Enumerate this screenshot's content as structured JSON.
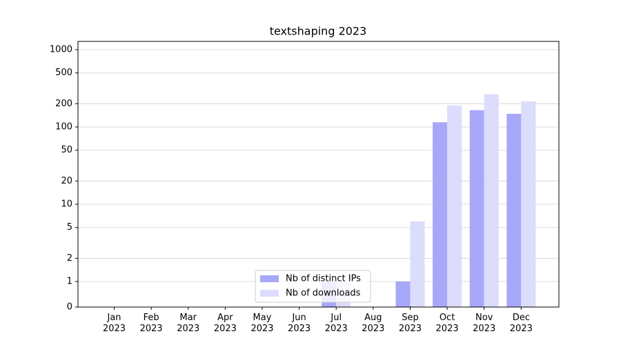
{
  "chart_data": {
    "type": "bar",
    "title": "textshaping 2023",
    "categories": [
      "Jan\n2023",
      "Feb\n2023",
      "Mar\n2023",
      "Apr\n2023",
      "May\n2023",
      "Jun\n2023",
      "Jul\n2023",
      "Aug\n2023",
      "Sep\n2023",
      "Oct\n2023",
      "Nov\n2023",
      "Dec\n2023"
    ],
    "series": [
      {
        "name": "Nb of distinct IPs",
        "color": "#a8a8f8",
        "values": [
          0,
          0,
          0,
          0,
          0,
          0,
          1,
          0,
          1,
          115,
          165,
          148
        ]
      },
      {
        "name": "Nb of downloads",
        "color": "#dcdcfc",
        "values": [
          0,
          0,
          0,
          0,
          0,
          0,
          1,
          0,
          6,
          190,
          265,
          215
        ]
      }
    ],
    "yscale": "symlog",
    "ylim": [
      0,
      1280
    ],
    "yticks": [
      0,
      1,
      2,
      5,
      10,
      20,
      50,
      100,
      200,
      500,
      1000
    ],
    "grid": true,
    "legend": "lower center"
  }
}
